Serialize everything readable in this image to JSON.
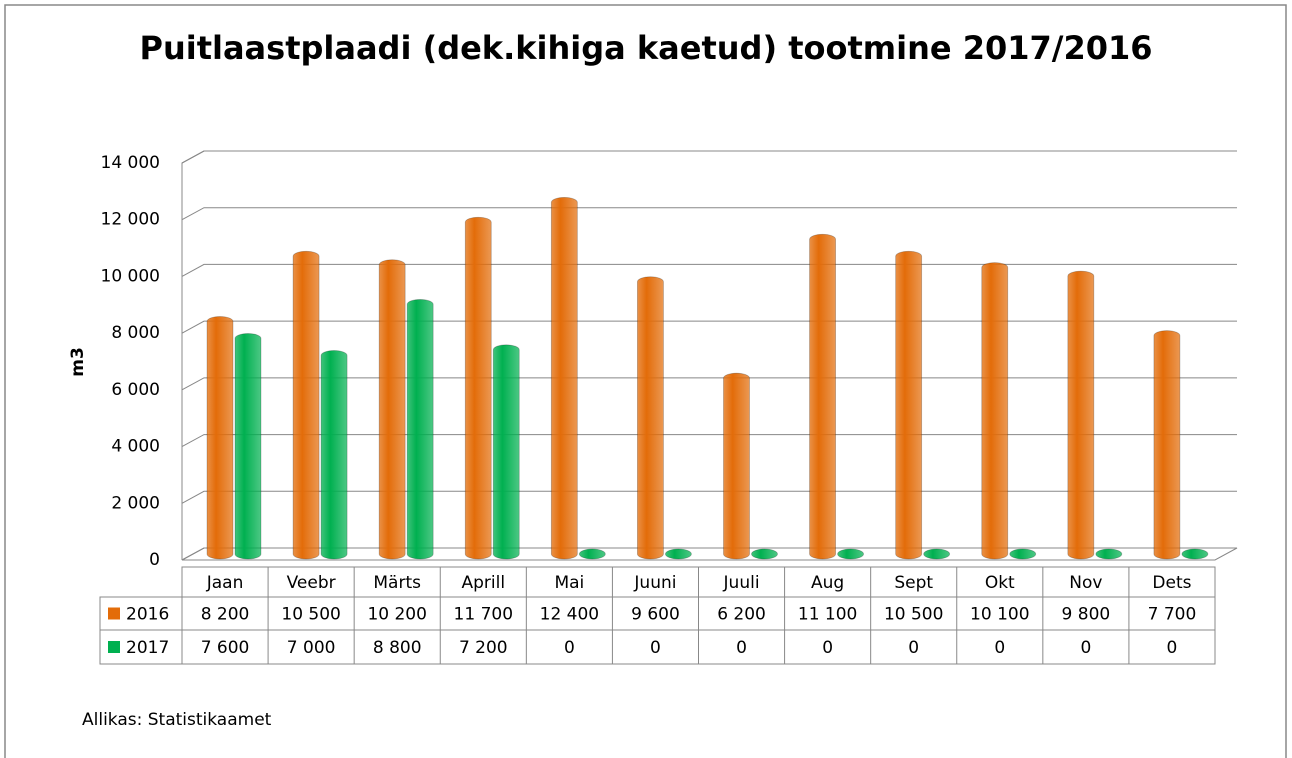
{
  "chart_data": {
    "type": "bar",
    "title": "Puitlaastplaadi (dek.kihiga kaetud) tootmine 2017/2016",
    "y_label": "m3",
    "annotation": "Allikas: Statistikaamet",
    "categories": [
      "Jaan",
      "Veebr",
      "Märts",
      "Aprill",
      "Mai",
      "Juuni",
      "Juuli",
      "Aug",
      "Sept",
      "Okt",
      "Nov",
      "Dets"
    ],
    "series": [
      {
        "name": "2016",
        "color": "#e36c09",
        "values": [
          8200,
          10500,
          10200,
          11700,
          12400,
          9600,
          6200,
          11100,
          10500,
          10100,
          9800,
          7700
        ],
        "value_labels": [
          "8 200",
          "10 500",
          "10 200",
          "11 700",
          "12 400",
          "9 600",
          "6 200",
          "11 100",
          "10 500",
          "10 100",
          "9 800",
          "7 700"
        ]
      },
      {
        "name": "2017",
        "color": "#00b050",
        "values": [
          7600,
          7000,
          8800,
          7200,
          0,
          0,
          0,
          0,
          0,
          0,
          0,
          0
        ],
        "value_labels": [
          "7 600",
          "7 000",
          "8 800",
          "7 200",
          "0",
          "0",
          "0",
          "0",
          "0",
          "0",
          "0",
          "0"
        ]
      }
    ],
    "ylim": [
      0,
      14000
    ],
    "yticks": [
      0,
      {
        "value": 2000,
        "label": "2 000"
      },
      {
        "value": 4000,
        "label": "4 000"
      },
      {
        "value": 6000,
        "label": "6 000"
      },
      {
        "value": 8000,
        "label": "8 000"
      },
      {
        "value": 10000,
        "label": "10 000"
      },
      {
        "value": 12000,
        "label": "12 000"
      },
      {
        "value": 14000,
        "label": "14 000"
      }
    ],
    "grid": true
  }
}
